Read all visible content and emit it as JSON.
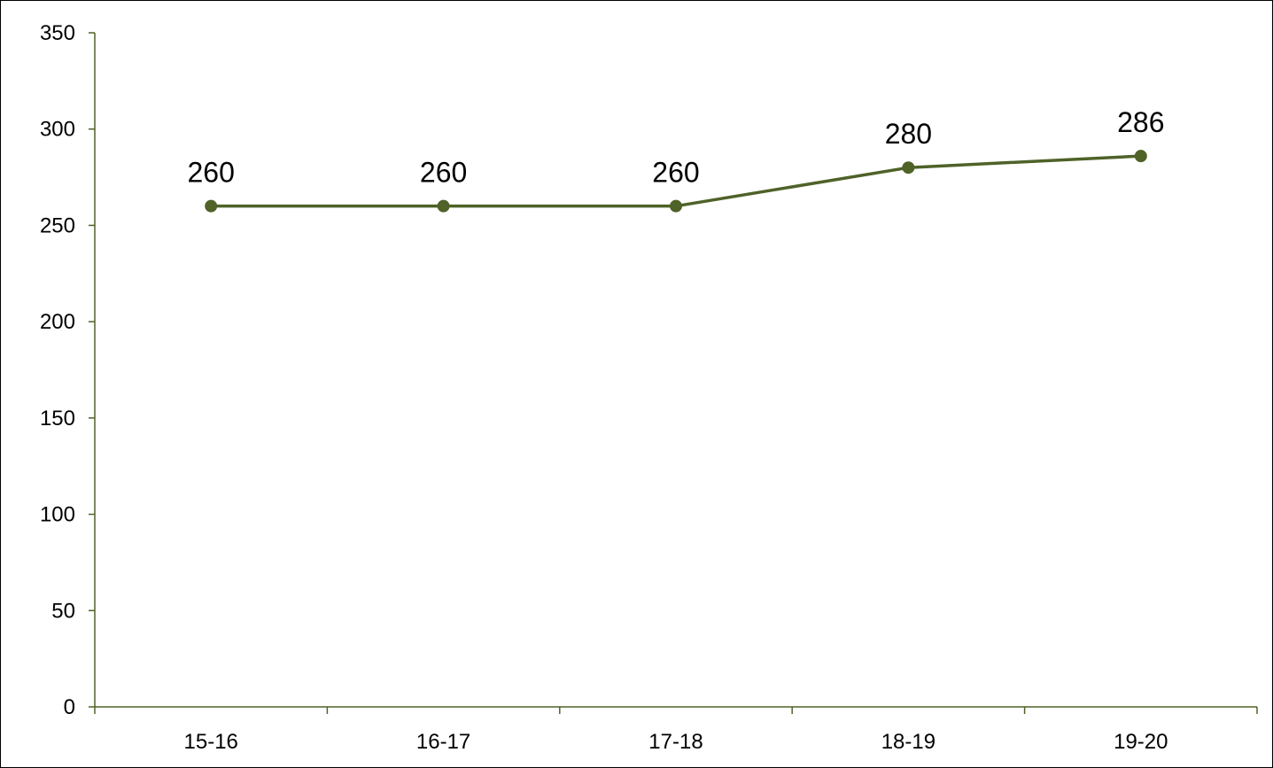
{
  "chart_data": {
    "type": "line",
    "title": "",
    "xlabel": "",
    "ylabel": "",
    "categories": [
      "15-16",
      "16-17",
      "17-18",
      "18-19",
      "19-20"
    ],
    "series": [
      {
        "values": [
          260,
          260,
          260,
          280,
          286
        ],
        "color": "#4f6228",
        "marker": "circle",
        "data_labels": [
          "260",
          "260",
          "260",
          "280",
          "286"
        ]
      }
    ],
    "ylim": [
      0,
      350
    ],
    "yticks": [
      0,
      50,
      100,
      150,
      200,
      250,
      300,
      350
    ],
    "ytick_labels": [
      "0",
      "50",
      "100",
      "150",
      "200",
      "250",
      "300",
      "350"
    ],
    "grid": false,
    "legend": "none",
    "axis_color": "#4f6228"
  }
}
